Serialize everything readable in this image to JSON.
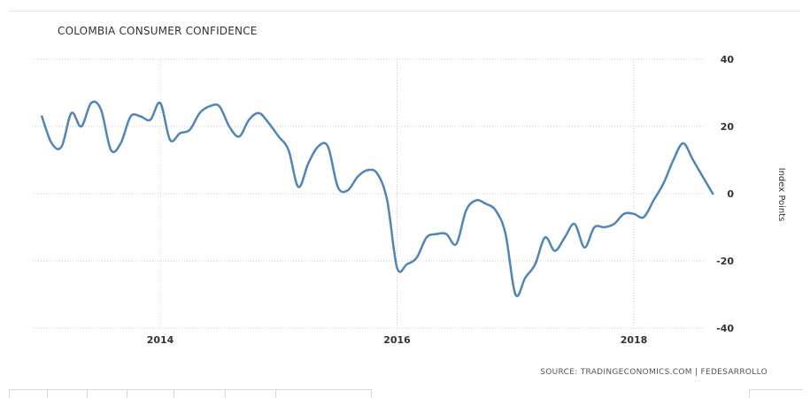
{
  "title": "COLOMBIA CONSUMER CONFIDENCE",
  "source": "SOURCE: TRADINGECONOMICS.COM | FEDESARROLLO",
  "colors": {
    "line": "#4f86b7",
    "grid": "#cccccc",
    "text": "#333333"
  },
  "chart_data": {
    "type": "line",
    "title": "COLOMBIA CONSUMER CONFIDENCE",
    "xlabel": "",
    "ylabel": "Index Points",
    "x_ticks": [
      "2014",
      "2016",
      "2018"
    ],
    "y_ticks": [
      40,
      20,
      0,
      -20,
      -40
    ],
    "ylim": [
      -40,
      40
    ],
    "xlim": [
      "2013-01",
      "2018-09"
    ],
    "grid": true,
    "legend": "none",
    "series": [
      {
        "name": "",
        "x": [
          "2013-01",
          "2013-02",
          "2013-03",
          "2013-04",
          "2013-05",
          "2013-06",
          "2013-07",
          "2013-08",
          "2013-09",
          "2013-10",
          "2013-11",
          "2013-12",
          "2014-01",
          "2014-02",
          "2014-03",
          "2014-04",
          "2014-05",
          "2014-06",
          "2014-07",
          "2014-08",
          "2014-09",
          "2014-10",
          "2014-11",
          "2014-12",
          "2015-01",
          "2015-02",
          "2015-03",
          "2015-04",
          "2015-05",
          "2015-06",
          "2015-07",
          "2015-08",
          "2015-09",
          "2015-10",
          "2015-11",
          "2015-12",
          "2016-01",
          "2016-02",
          "2016-03",
          "2016-04",
          "2016-05",
          "2016-06",
          "2016-07",
          "2016-08",
          "2016-09",
          "2016-10",
          "2016-11",
          "2016-12",
          "2017-01",
          "2017-02",
          "2017-03",
          "2017-04",
          "2017-05",
          "2017-06",
          "2017-07",
          "2017-08",
          "2017-09",
          "2017-10",
          "2017-11",
          "2017-12",
          "2018-01",
          "2018-02",
          "2018-03",
          "2018-04",
          "2018-05",
          "2018-06",
          "2018-07",
          "2018-08",
          "2018-09"
        ],
        "values": [
          23,
          15,
          14,
          24,
          20,
          27,
          25,
          13,
          15,
          23,
          23,
          22,
          27,
          16,
          18,
          19,
          24,
          26,
          26,
          20,
          17,
          22,
          24,
          21,
          17,
          13,
          2,
          9,
          14,
          14,
          2,
          1,
          5,
          7,
          6,
          -2,
          -22,
          -21,
          -19,
          -13,
          -12,
          -12,
          -15,
          -5,
          -2,
          -3,
          -5,
          -12,
          -30,
          -25,
          -21,
          -13,
          -17,
          -13,
          -9,
          -16,
          -10,
          -10,
          -9,
          -6,
          -6,
          -7,
          -2,
          3,
          10,
          15,
          10,
          5,
          0
        ]
      }
    ]
  }
}
